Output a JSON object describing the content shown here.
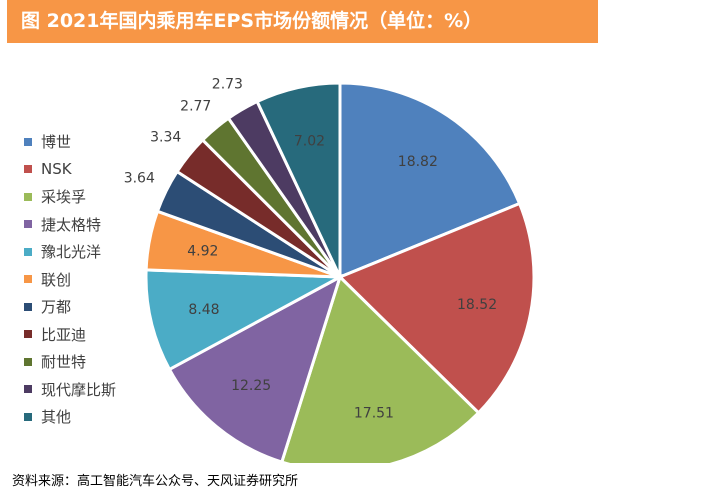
{
  "title": "图 2021年国内乘用车EPS市场份额情况（单位：%）",
  "source": "资料来源：高工智能汽车公众号、天风证券研究所",
  "colors": {
    "title_bg": "#F79646"
  },
  "chart_data": {
    "type": "pie",
    "title": "图 2021年国内乘用车EPS市场份额情况（单位：%）",
    "legend_position": "left",
    "categories": [
      "博世",
      "NSK",
      "采埃孚",
      "捷太格特",
      "豫北光洋",
      "联创",
      "万都",
      "比亚迪",
      "耐世特",
      "现代摩比斯",
      "其他"
    ],
    "values": [
      18.82,
      18.52,
      17.51,
      12.25,
      8.48,
      4.92,
      3.64,
      3.34,
      2.77,
      2.73,
      7.02
    ],
    "value_labels": [
      "18.82",
      "18.52",
      "17.51",
      "12.25",
      "8.48",
      "4.92",
      "3.64",
      "3.34",
      "2.77",
      "2.73",
      "7.02"
    ],
    "colors": [
      "#4F81BD",
      "#C0504D",
      "#9BBB59",
      "#8064A2",
      "#4BACC6",
      "#F79646",
      "#2C4D75",
      "#772C2A",
      "#5F7530",
      "#4D3B62",
      "#276A7C"
    ]
  }
}
